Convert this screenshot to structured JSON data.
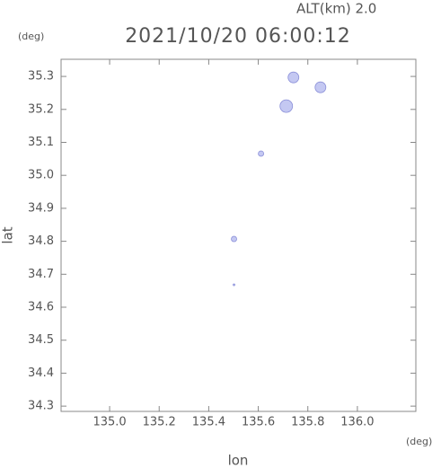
{
  "chart_data": {
    "type": "scatter",
    "subtitle": "ALT(km) 2.0",
    "title": "2021/10/20 06:00:12",
    "y_unit": "(deg)",
    "x_unit": "(deg)",
    "xlabel": "lon",
    "ylabel": "lat",
    "xlim": [
      134.804,
      136.236
    ],
    "ylim": [
      34.284,
      35.352
    ],
    "xticks": [
      {
        "value": 135,
        "label": "135.0"
      },
      135.2,
      135.4,
      135.6,
      135.8,
      {
        "value": 136,
        "label": "136.0"
      }
    ],
    "yticks": [
      34.3,
      34.4,
      34.5,
      34.6,
      34.7,
      34.8,
      34.9,
      {
        "value": 35,
        "label": "35.0"
      },
      35.1,
      35.2,
      35.3
    ],
    "series": [
      {
        "color": "#c4c8f2",
        "x": [
          135.742,
          135.851,
          135.713,
          135.611,
          135.502,
          135.502
        ],
        "y": [
          35.297,
          35.267,
          35.21,
          35.066,
          34.807,
          34.668
        ]
      }
    ]
  }
}
